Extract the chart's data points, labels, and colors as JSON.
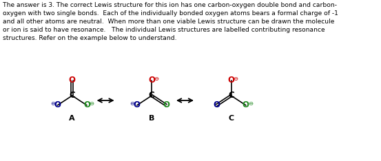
{
  "background": "#ffffff",
  "text_color": "#000000",
  "red": "#cc0000",
  "green": "#228B22",
  "blue": "#00008B",
  "black": "#000000",
  "label_A": "A",
  "label_B": "B",
  "label_C": "C",
  "paragraph": "The answer is 3. The correct Lewis structure for this ion has one carbon-oxygen double bond and carbon-\noxygen with two single bonds.  Each of the individually bonded oxygen atoms bears a formal charge of -1\nand all other atoms are neutral.  When more than one viable Lewis structure can be drawn the molecule\nor ion is said to have resonance.   The individual Lewis structures are labelled contributing resonance\nstructures. Refer on the example below to understand."
}
